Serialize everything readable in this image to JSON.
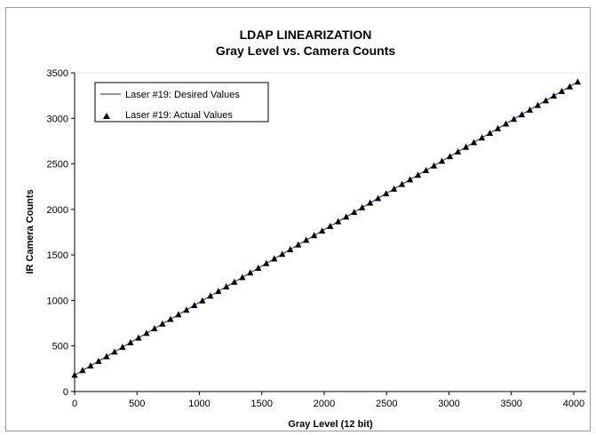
{
  "chart_data": {
    "type": "scatter",
    "title": "LDAP LINEARIZATION",
    "subtitle": "Gray Level vs. Camera Counts",
    "xlabel": "Gray Level (12 bit)",
    "ylabel": "IR Camera Counts",
    "xlim": [
      0,
      4100
    ],
    "ylim": [
      0,
      3500
    ],
    "xticks": [
      "0",
      "500",
      "1000",
      "1500",
      "2000",
      "2500",
      "3000",
      "3500",
      "4000"
    ],
    "yticks": [
      "0",
      "500",
      "1000",
      "1500",
      "2000",
      "2500",
      "3000",
      "3500"
    ],
    "grid": false,
    "legend_position": "top-left",
    "series": [
      {
        "name": "Laser #19: Desired Values",
        "style": "line",
        "color": "#1f1f7a",
        "x": [
          0,
          4032
        ],
        "y": [
          180,
          3400
        ]
      },
      {
        "name": "Laser #19: Actual Values",
        "style": "triangle-marker",
        "color": "#000000",
        "x": [
          0,
          64,
          128,
          192,
          256,
          320,
          384,
          448,
          512,
          576,
          640,
          704,
          768,
          832,
          896,
          960,
          1024,
          1088,
          1152,
          1216,
          1280,
          1344,
          1408,
          1472,
          1536,
          1600,
          1664,
          1728,
          1792,
          1856,
          1920,
          1984,
          2048,
          2112,
          2176,
          2240,
          2304,
          2368,
          2432,
          2496,
          2560,
          2624,
          2688,
          2752,
          2816,
          2880,
          2944,
          3008,
          3072,
          3136,
          3200,
          3264,
          3328,
          3392,
          3456,
          3520,
          3584,
          3648,
          3712,
          3776,
          3840,
          3904,
          3968,
          4032
        ],
        "y": [
          180,
          231,
          282,
          333,
          384,
          435,
          487,
          538,
          589,
          640,
          691,
          742,
          793,
          844,
          895,
          946,
          997,
          1049,
          1100,
          1151,
          1202,
          1253,
          1304,
          1355,
          1406,
          1457,
          1508,
          1559,
          1611,
          1662,
          1713,
          1764,
          1815,
          1866,
          1917,
          1968,
          2019,
          2070,
          2121,
          2173,
          2224,
          2275,
          2326,
          2377,
          2428,
          2479,
          2530,
          2581,
          2632,
          2683,
          2735,
          2786,
          2837,
          2888,
          2939,
          2990,
          3041,
          3092,
          3143,
          3194,
          3245,
          3297,
          3348,
          3400
        ]
      }
    ]
  }
}
